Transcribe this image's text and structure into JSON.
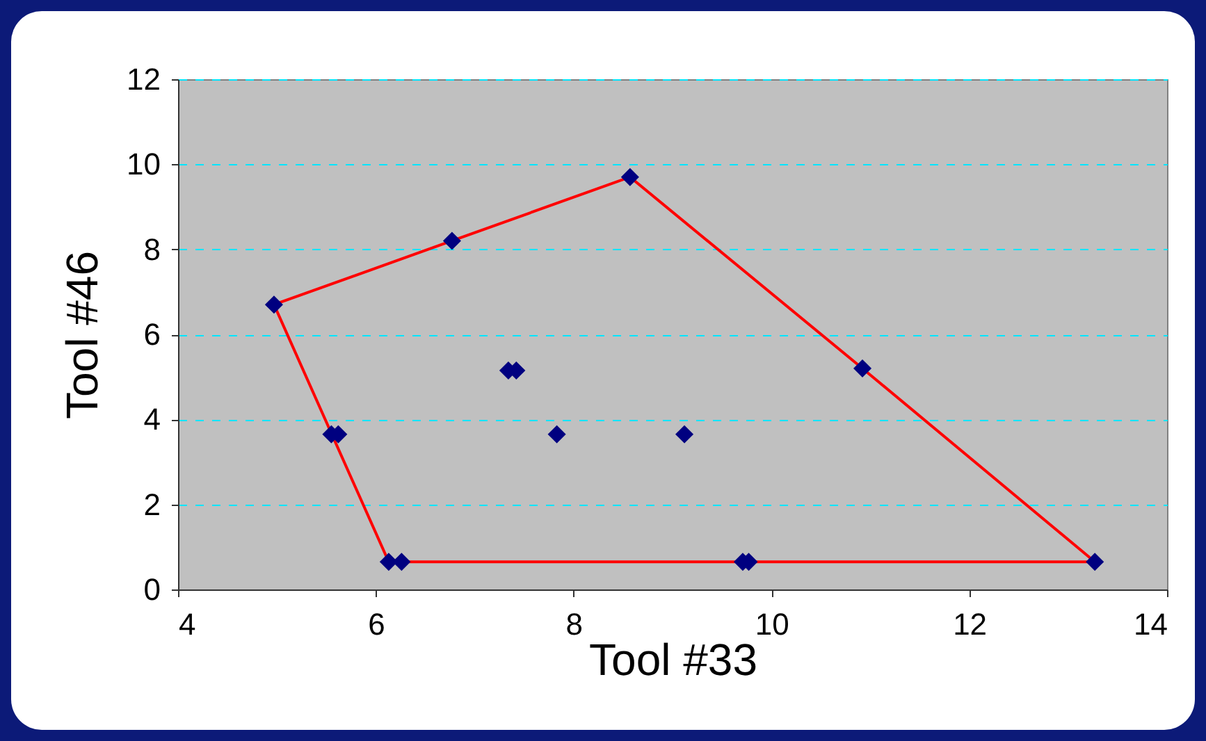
{
  "chart_data": {
    "type": "scatter",
    "xlabel": "Tool #33",
    "ylabel": "Tool #46",
    "xlim": [
      4,
      14
    ],
    "xticks": [
      4,
      6,
      8,
      10,
      12,
      14
    ],
    "ylim": [
      0,
      12
    ],
    "yticks": [
      0,
      2,
      4,
      6,
      8,
      10,
      12
    ],
    "grid": "y",
    "marker": "diamond",
    "series": [
      {
        "type": "line",
        "color": "#ff0000",
        "marker": "none",
        "line_style": "solid",
        "x": [
          4.97,
          6.77,
          8.57,
          10.92,
          13.27
        ],
        "values": [
          6.7,
          8.2,
          9.7,
          5.2,
          0.65
        ]
      },
      {
        "type": "line",
        "color": "#ff0000",
        "marker": "none",
        "line_style": "solid",
        "x": [
          4.97,
          6.13,
          13.27
        ],
        "values": [
          6.7,
          0.65,
          0.65
        ]
      },
      {
        "color": "#000080",
        "x": [
          4.97,
          6.77,
          8.57,
          10.92,
          13.27,
          6.13,
          6.26,
          9.71,
          9.77,
          5.55,
          5.62,
          7.34,
          7.42,
          7.83,
          9.12
        ],
        "values": [
          6.7,
          8.2,
          9.7,
          5.2,
          0.65,
          0.65,
          0.65,
          0.65,
          0.65,
          3.65,
          3.65,
          5.15,
          5.15,
          3.65,
          3.65
        ]
      }
    ]
  }
}
